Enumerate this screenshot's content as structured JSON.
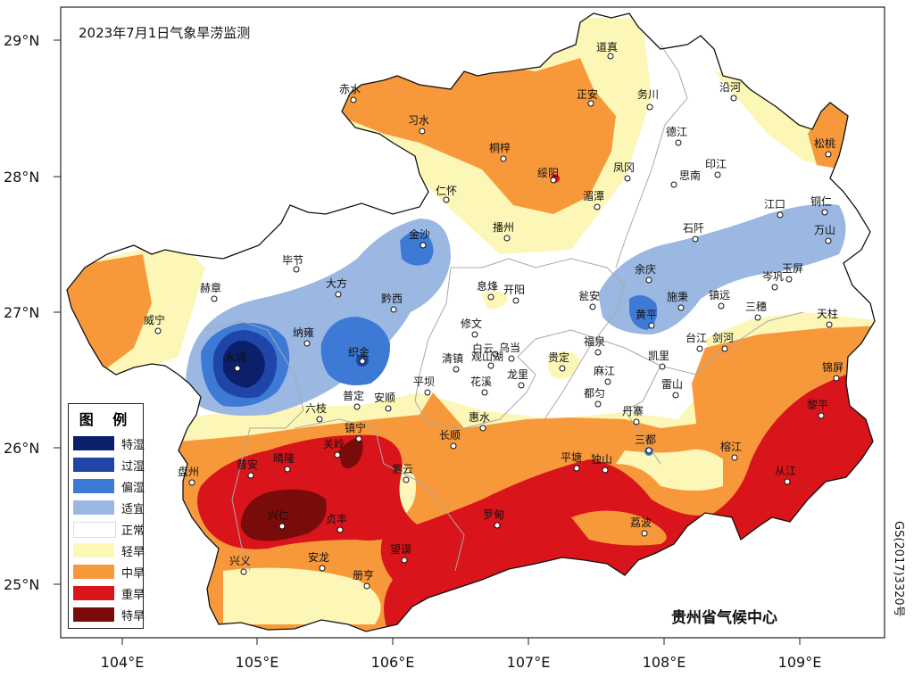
{
  "title": "2023年7月1日气象旱涝监测",
  "organization": "贵州省气候中心",
  "map_code": "GS(2017)3320号",
  "axes": {
    "lat_ticks": [
      "29°N",
      "28°N",
      "27°N",
      "26°N",
      "25°N"
    ],
    "lon_ticks": [
      "104°E",
      "105°E",
      "106°E",
      "107°E",
      "108°E",
      "109°E"
    ]
  },
  "legend": {
    "title": "图 例",
    "items": [
      {
        "label": "特湿",
        "color": "#0b1f6b"
      },
      {
        "label": "过湿",
        "color": "#1f45a8"
      },
      {
        "label": "偏湿",
        "color": "#3d7ad6"
      },
      {
        "label": "适宜",
        "color": "#9bb8e3"
      },
      {
        "label": "正常",
        "color": "#ffffff"
      },
      {
        "label": "轻旱",
        "color": "#fcf7b6"
      },
      {
        "label": "中旱",
        "color": "#f7993b"
      },
      {
        "label": "重旱",
        "color": "#d9141b"
      },
      {
        "label": "特旱",
        "color": "#7a0b0b"
      }
    ]
  },
  "cities": [
    "道真",
    "赤水",
    "习水",
    "正安",
    "务川",
    "沿河",
    "德江",
    "松桃",
    "桐梓",
    "绥阳",
    "凤冈",
    "思南",
    "印江",
    "仁怀",
    "湄潭",
    "江口",
    "铜仁",
    "毕节",
    "金沙",
    "播州",
    "石阡",
    "万山",
    "赫章",
    "大方",
    "余庆",
    "岑巩",
    "玉屏",
    "威宁",
    "黔西",
    "息烽",
    "开阳",
    "瓮安",
    "黄平",
    "施秉",
    "镇远",
    "三穗",
    "天柱",
    "纳雍",
    "修文",
    "白云",
    "乌当",
    "织金",
    "清镇",
    "观山湖",
    "福泉",
    "凯里",
    "台江",
    "剑河",
    "水城",
    "龙里",
    "贵定",
    "麻江",
    "锦屏",
    "普定",
    "花溪",
    "平坝",
    "安顺",
    "都匀",
    "雷山",
    "六枝",
    "惠水",
    "丹寨",
    "黎平",
    "镇宁",
    "关岭",
    "长顺",
    "三都",
    "盘州",
    "普安",
    "晴隆",
    "紫云",
    "平塘",
    "独山",
    "榕江",
    "从江",
    "兴仁",
    "贞丰",
    "罗甸",
    "荔波",
    "兴义",
    "安龙",
    "望谟",
    "册亨"
  ]
}
